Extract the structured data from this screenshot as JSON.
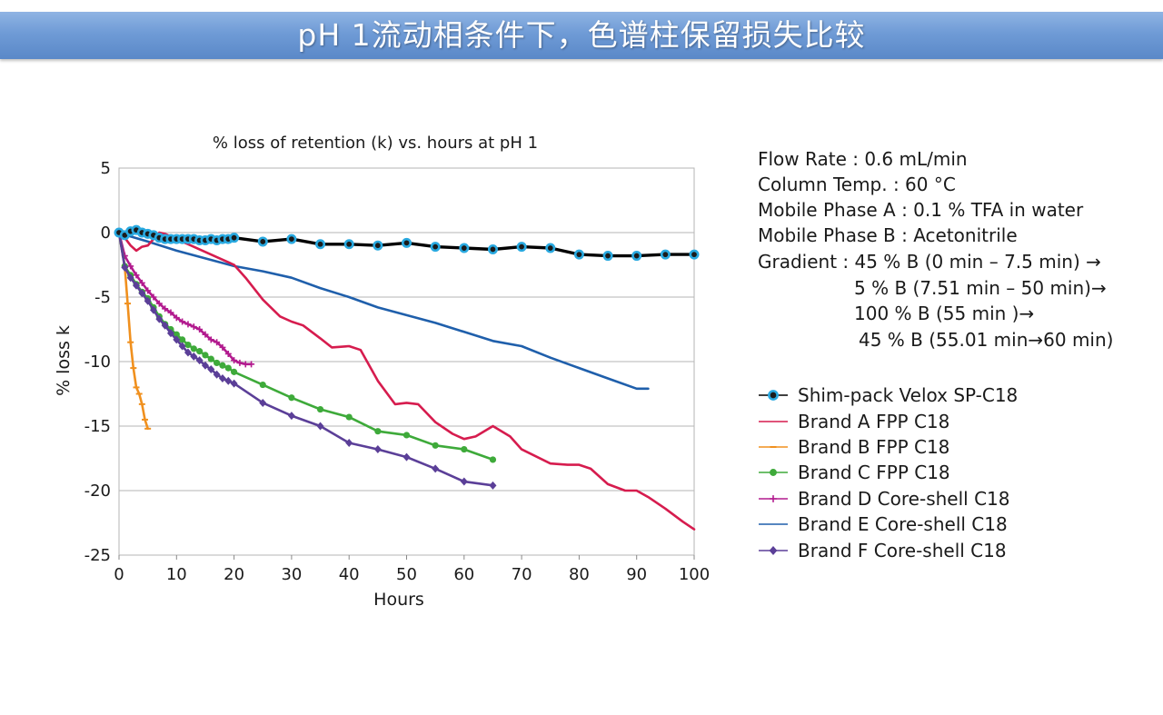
{
  "banner": {
    "title": "pH 1流动相条件下，色谱柱保留损失比较"
  },
  "conditions": [
    "Flow Rate : 0.6 mL/min",
    "Column Temp. : 60 °C",
    "Mobile Phase A : 0.1 % TFA in water",
    "Mobile Phase B : Acetonitrile",
    "Gradient : 45 % B (0 min – 7.5 min) →",
    "5 % B (7.51 min – 50 min)→",
    "100 % B (55 min )→",
    "45 % B (55.01 min→60 min)"
  ],
  "chart_data": {
    "type": "line",
    "title": "% loss of retention (k) vs. hours at pH 1",
    "xlabel": "Hours",
    "ylabel": "% loss k",
    "xlim": [
      0,
      100
    ],
    "ylim": [
      -25,
      5
    ],
    "xticks": [
      0,
      10,
      20,
      30,
      40,
      50,
      60,
      70,
      80,
      90,
      100
    ],
    "yticks": [
      5,
      0,
      -5,
      -10,
      -15,
      -20,
      -25
    ],
    "grid": "horizontal",
    "series": [
      {
        "name": "Shim-pack Velox SP-C18",
        "color": "#000000",
        "marker": "circle",
        "markerFill": "#1b1b1b",
        "markerEdge": "#29a9e0",
        "x": [
          0,
          1,
          2,
          3,
          4,
          5,
          6,
          7,
          8,
          9,
          10,
          11,
          12,
          13,
          14,
          15,
          16,
          17,
          18,
          19,
          20,
          25,
          30,
          35,
          40,
          45,
          50,
          55,
          60,
          65,
          70,
          75,
          80,
          85,
          90,
          95,
          100
        ],
        "y": [
          0,
          -0.2,
          0.1,
          0.2,
          0,
          -0.1,
          -0.2,
          -0.4,
          -0.5,
          -0.5,
          -0.5,
          -0.5,
          -0.5,
          -0.5,
          -0.6,
          -0.6,
          -0.5,
          -0.6,
          -0.5,
          -0.5,
          -0.4,
          -0.7,
          -0.5,
          -0.9,
          -0.9,
          -1.0,
          -0.8,
          -1.1,
          -1.2,
          -1.3,
          -1.1,
          -1.2,
          -1.7,
          -1.8,
          -1.8,
          -1.7,
          -1.7
        ]
      },
      {
        "name": "Brand A FPP C18",
        "color": "#d61c4e",
        "marker": "none",
        "x": [
          0,
          1,
          2,
          3,
          4,
          5,
          6,
          7,
          8,
          9,
          10,
          12,
          15,
          18,
          20,
          22,
          25,
          28,
          30,
          32,
          35,
          37,
          40,
          42,
          45,
          48,
          50,
          52,
          55,
          58,
          60,
          62,
          65,
          68,
          70,
          75,
          78,
          80,
          82,
          85,
          88,
          90,
          92,
          95,
          98,
          100
        ],
        "y": [
          0,
          -0.4,
          -1.0,
          -1.4,
          -1.1,
          -1.0,
          -0.5,
          0,
          -0.1,
          -0.3,
          -0.5,
          -0.9,
          -1.5,
          -2.1,
          -2.5,
          -3.5,
          -5.2,
          -6.5,
          -6.9,
          -7.2,
          -8.2,
          -8.9,
          -8.8,
          -9.1,
          -11.5,
          -13.3,
          -13.2,
          -13.3,
          -14.7,
          -15.6,
          -16.0,
          -15.8,
          -15.0,
          -15.8,
          -16.8,
          -17.9,
          -18.0,
          -18.0,
          -18.3,
          -19.5,
          -20.0,
          -20.0,
          -20.5,
          -21.4,
          -22.4,
          -23.0
        ]
      },
      {
        "name": "Brand B FPP C18",
        "color": "#f0901e",
        "marker": "dash",
        "x": [
          0,
          1,
          1.5,
          2,
          2.5,
          3,
          3.5,
          4,
          4.5,
          5
        ],
        "y": [
          0,
          -2.6,
          -5.5,
          -8.5,
          -10.5,
          -12.0,
          -12.5,
          -13.3,
          -14.5,
          -15.2
        ]
      },
      {
        "name": "Brand C FPP C18",
        "color": "#3eaa3a",
        "marker": "circle",
        "x": [
          0,
          1,
          2,
          3,
          4,
          5,
          6,
          7,
          8,
          9,
          10,
          11,
          12,
          13,
          14,
          15,
          16,
          17,
          18,
          19,
          20,
          25,
          30,
          35,
          40,
          45,
          50,
          55,
          60,
          65
        ],
        "y": [
          0,
          -2.6,
          -3.3,
          -4.0,
          -4.6,
          -5.1,
          -5.8,
          -6.5,
          -7.1,
          -7.5,
          -7.9,
          -8.3,
          -8.7,
          -9.0,
          -9.2,
          -9.5,
          -9.8,
          -10.1,
          -10.3,
          -10.5,
          -10.8,
          -11.8,
          -12.8,
          -13.7,
          -14.3,
          -15.4,
          -15.7,
          -16.5,
          -16.8,
          -17.6
        ]
      },
      {
        "name": "Brand D Core-shell C18",
        "color": "#b21a8e",
        "marker": "plus",
        "x": [
          0,
          1,
          2,
          3,
          4,
          5,
          6,
          7,
          8,
          9,
          10,
          11,
          12,
          13,
          14,
          15,
          16,
          17,
          18,
          19,
          20,
          21,
          22,
          23
        ],
        "y": [
          0,
          -1.8,
          -2.6,
          -3.3,
          -3.9,
          -4.5,
          -5.0,
          -5.5,
          -5.9,
          -6.2,
          -6.6,
          -6.9,
          -7.1,
          -7.3,
          -7.5,
          -7.9,
          -8.3,
          -8.5,
          -8.9,
          -9.4,
          -9.9,
          -10.1,
          -10.2,
          -10.2
        ]
      },
      {
        "name": "Brand E Core-shell C18",
        "color": "#1f5fab",
        "marker": "none",
        "x": [
          0,
          2,
          5,
          10,
          15,
          20,
          25,
          30,
          35,
          40,
          45,
          50,
          55,
          60,
          65,
          70,
          75,
          80,
          85,
          90,
          92
        ],
        "y": [
          0,
          -0.3,
          -0.7,
          -1.4,
          -2.0,
          -2.6,
          -3.0,
          -3.5,
          -4.3,
          -5.0,
          -5.8,
          -6.4,
          -7.0,
          -7.7,
          -8.4,
          -8.8,
          -9.7,
          -10.5,
          -11.3,
          -12.1,
          -12.1
        ]
      },
      {
        "name": "Brand F Core-shell C18",
        "color": "#5b3f98",
        "marker": "diamond",
        "x": [
          0,
          1,
          2,
          3,
          4,
          5,
          6,
          7,
          8,
          9,
          10,
          11,
          12,
          13,
          14,
          15,
          16,
          17,
          18,
          19,
          20,
          25,
          30,
          35,
          40,
          45,
          50,
          55,
          60,
          65
        ],
        "y": [
          0,
          -2.7,
          -3.5,
          -4.1,
          -4.7,
          -5.3,
          -6.0,
          -6.7,
          -7.2,
          -7.8,
          -8.3,
          -8.8,
          -9.3,
          -9.6,
          -9.9,
          -10.3,
          -10.6,
          -11.0,
          -11.3,
          -11.5,
          -11.7,
          -13.2,
          -14.2,
          -15.0,
          -16.3,
          -16.8,
          -17.4,
          -18.3,
          -19.3,
          -19.6
        ]
      }
    ]
  }
}
